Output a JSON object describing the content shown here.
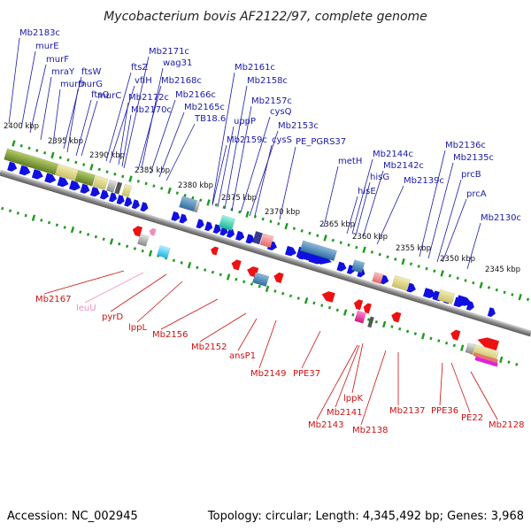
{
  "title": "Mycobacterium bovis AF2122/97, complete genome",
  "footer": {
    "accession": "Accession: NC_002945",
    "summary": "Topology: circular; Length: 4,345,492 bp; Genes: 3,968"
  },
  "ticks": [
    "2400 kbp",
    "2395 kbp",
    "2390 kbp",
    "2385 kbp",
    "2380 kbp",
    "2375 kbp",
    "2370 kbp",
    "2365 kbp",
    "2360 kbp",
    "2355 kbp",
    "2350 kbp",
    "2345 kbp"
  ],
  "top_labels": [
    "Mb2183c",
    "murE",
    "murF",
    "mraY",
    "murD",
    "ftsW",
    "murG",
    "ftsQ",
    "murC",
    "ftsZ",
    "vfiH",
    "wag31",
    "Mb2171c",
    "Mb2172c",
    "Mb2168c",
    "Mb2170c",
    "Mb2166c",
    "Mb2165c",
    "TB18.6",
    "Mb2161c",
    "Mb2158c",
    "uppP",
    "Mb2157c",
    "cysQ",
    "Mb2159c",
    "cysS",
    "Mb2153c",
    "PE_PGRS37",
    "metH",
    "Mb2144c",
    "Mb2142c",
    "hisG",
    "hisE",
    "Mb2139c",
    "Mb2136c",
    "Mb2135c",
    "prcB",
    "prcA",
    "Mb2130c"
  ],
  "bottom_labels": [
    "Mb2167",
    "leuU",
    "pyrD",
    "lppL",
    "Mb2156",
    "Mb2152",
    "ansP1",
    "Mb2149",
    "PPE37",
    "lppK",
    "Mb2141",
    "Mb2143",
    "Mb2138",
    "Mb2137",
    "PPE36",
    "PE22",
    "Mb2128"
  ],
  "colors": {
    "forward": "#1010e0",
    "reverse": "#ee1111",
    "backbone": "#7a7a7a",
    "tick": "#1a9a1a",
    "top_label": "#1a1aa8",
    "bottom_label": "#cc1111",
    "trna": "#f08cc0"
  }
}
